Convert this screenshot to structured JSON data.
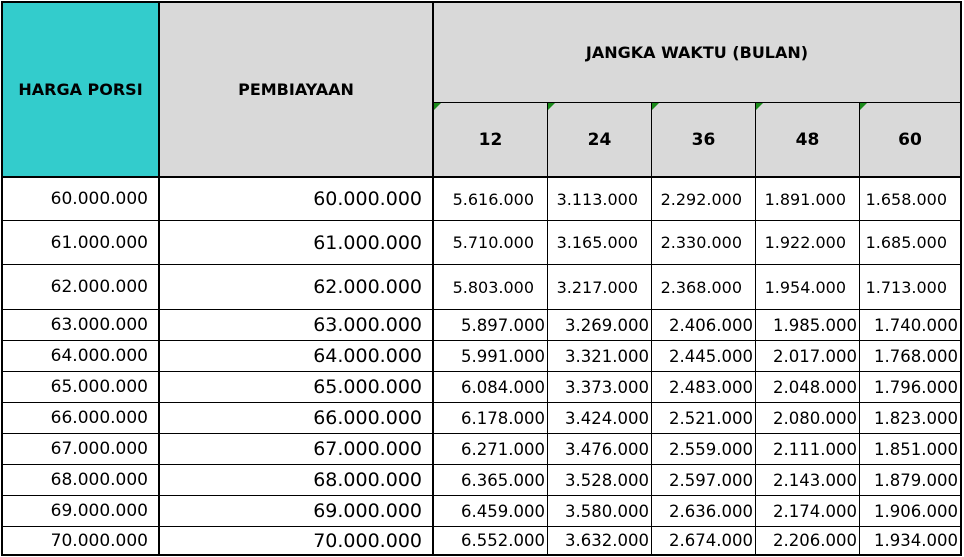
{
  "header": {
    "harga_porsi": "HARGA PORSI",
    "pembiayaan": "PEMBIAYAAN",
    "jangka_waktu": "JANGKA WAKTU (BULAN)",
    "terms": [
      "12",
      "24",
      "36",
      "48",
      "60"
    ]
  },
  "colors": {
    "harga_porsi_header": "#33cccc",
    "header_gray": "#d9d9d9",
    "comment_marker": "#1a8a1a"
  },
  "rows": [
    {
      "harga": "60.000.000",
      "pembiayaan": "60.000.000",
      "values": [
        "5.616.000",
        "3.113.000",
        "2.292.000",
        "1.891.000",
        "1.658.000"
      ]
    },
    {
      "harga": "61.000.000",
      "pembiayaan": "61.000.000",
      "values": [
        "5.710.000",
        "3.165.000",
        "2.330.000",
        "1.922.000",
        "1.685.000"
      ]
    },
    {
      "harga": "62.000.000",
      "pembiayaan": "62.000.000",
      "values": [
        "5.803.000",
        "3.217.000",
        "2.368.000",
        "1.954.000",
        "1.713.000"
      ]
    },
    {
      "harga": "63.000.000",
      "pembiayaan": "63.000.000",
      "values": [
        "5.897.000",
        "3.269.000",
        "2.406.000",
        "1.985.000",
        "1.740.000"
      ]
    },
    {
      "harga": "64.000.000",
      "pembiayaan": "64.000.000",
      "values": [
        "5.991.000",
        "3.321.000",
        "2.445.000",
        "2.017.000",
        "1.768.000"
      ]
    },
    {
      "harga": "65.000.000",
      "pembiayaan": "65.000.000",
      "values": [
        "6.084.000",
        "3.373.000",
        "2.483.000",
        "2.048.000",
        "1.796.000"
      ]
    },
    {
      "harga": "66.000.000",
      "pembiayaan": "66.000.000",
      "values": [
        "6.178.000",
        "3.424.000",
        "2.521.000",
        "2.080.000",
        "1.823.000"
      ]
    },
    {
      "harga": "67.000.000",
      "pembiayaan": "67.000.000",
      "values": [
        "6.271.000",
        "3.476.000",
        "2.559.000",
        "2.111.000",
        "1.851.000"
      ]
    },
    {
      "harga": "68.000.000",
      "pembiayaan": "68.000.000",
      "values": [
        "6.365.000",
        "3.528.000",
        "2.597.000",
        "2.143.000",
        "1.879.000"
      ]
    },
    {
      "harga": "69.000.000",
      "pembiayaan": "69.000.000",
      "values": [
        "6.459.000",
        "3.580.000",
        "2.636.000",
        "2.174.000",
        "1.906.000"
      ]
    },
    {
      "harga": "70.000.000",
      "pembiayaan": "70.000.000",
      "values": [
        "6.552.000",
        "3.632.000",
        "2.674.000",
        "2.206.000",
        "1.934.000"
      ]
    }
  ]
}
